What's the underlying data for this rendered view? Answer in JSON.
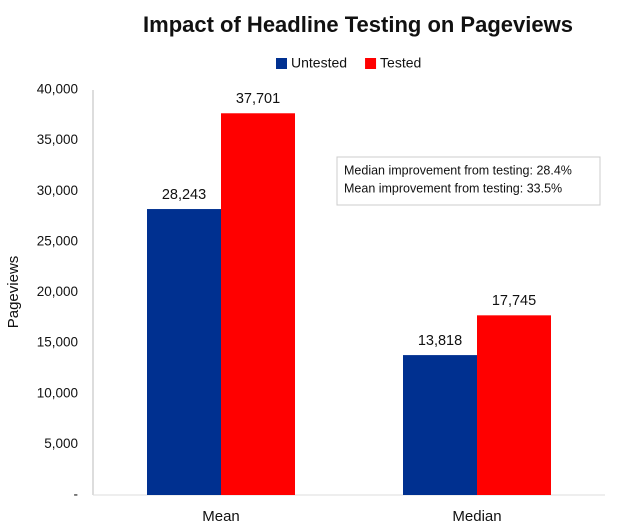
{
  "chart_data": {
    "type": "bar",
    "title": "Impact of Headline Testing on Pageviews",
    "y_label": "Pageviews",
    "categories": [
      "Mean",
      "Median"
    ],
    "series": [
      {
        "name": "Untested",
        "color": "#003090",
        "values": [
          28243,
          13818
        ],
        "value_labels": [
          "28,243",
          "13,818"
        ]
      },
      {
        "name": "Tested",
        "color": "#ff0000",
        "values": [
          37701,
          17745
        ],
        "value_labels": [
          "37,701",
          "17,745"
        ]
      }
    ],
    "ylim": [
      0,
      40000
    ],
    "yticks": [
      {
        "value": 0,
        "label": "-"
      },
      {
        "value": 5000,
        "label": "5,000"
      },
      {
        "value": 10000,
        "label": "10,000"
      },
      {
        "value": 15000,
        "label": "15,000"
      },
      {
        "value": 20000,
        "label": "20,000"
      },
      {
        "value": 25000,
        "label": "25,000"
      },
      {
        "value": 30000,
        "label": "30,000"
      },
      {
        "value": 35000,
        "label": "35,000"
      },
      {
        "value": 40000,
        "label": "40,000"
      }
    ],
    "annotations": [
      "Median improvement from testing: 28.4%",
      "Mean improvement from testing: 33.5%"
    ],
    "legend": "top",
    "grid": false
  }
}
